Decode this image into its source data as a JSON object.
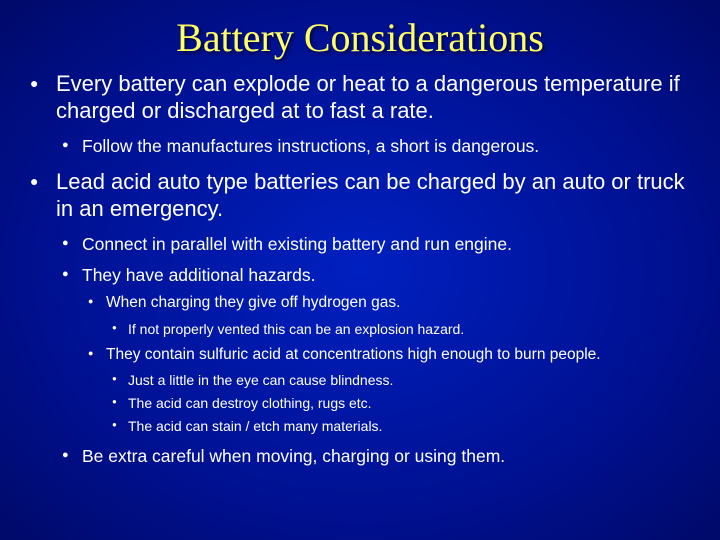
{
  "title": "Battery Considerations",
  "colors": {
    "title_color": "#ffff66",
    "text_color": "#ffffff",
    "bg_gradient_center": "#0020c0",
    "bg_gradient_mid": "#001090",
    "bg_gradient_outer": "#000038"
  },
  "typography": {
    "title_font": "Times New Roman",
    "body_font": "Arial",
    "title_size_pt": 30,
    "lvl1_size_pt": 17,
    "lvl2_size_pt": 13,
    "lvl3_size_pt": 12,
    "lvl4_size_pt": 10
  },
  "bullets": [
    {
      "text": "Every battery can explode or heat to a dangerous temperature if charged or discharged at to fast a rate.",
      "children": [
        {
          "text": "Follow the manufactures instructions, a short is dangerous."
        }
      ]
    },
    {
      "text": "Lead acid auto type batteries can be charged by an auto or truck in an emergency.",
      "children": [
        {
          "text": "Connect in parallel with existing battery and run engine."
        },
        {
          "text": "They have additional hazards.",
          "children": [
            {
              "text": "When charging they give off hydrogen gas.",
              "children": [
                {
                  "text": "If not properly vented this can be an explosion hazard."
                }
              ]
            },
            {
              "text": "They contain sulfuric acid at concentrations high enough to burn people.",
              "children": [
                {
                  "text": "Just a little in the eye can cause blindness."
                },
                {
                  "text": "The acid can destroy clothing, rugs etc."
                },
                {
                  "text": "The acid can stain / etch many materials."
                }
              ]
            }
          ]
        },
        {
          "text": "Be extra careful when moving, charging or using them."
        }
      ]
    }
  ]
}
